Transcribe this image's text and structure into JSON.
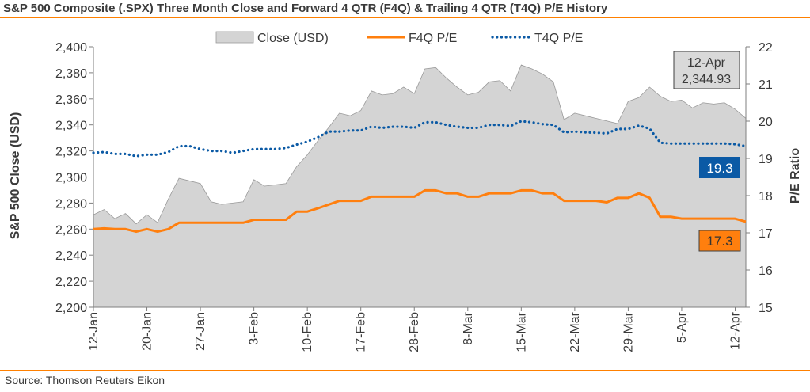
{
  "title": "S&P 500 Composite (.SPX) Three Month Close and Forward 4 QTR (F4Q) & Trailing 4 QTR (T4Q) P/E History",
  "source": "Source: Thomson Reuters Eikon",
  "colors": {
    "area_fill": "#d4d4d4",
    "area_stroke": "#9a9a9a",
    "f4q": "#ff7f0e",
    "t4q": "#0b5aa5",
    "title_rule": "#ff8000",
    "text": "#3a3a3a"
  },
  "chart_data": {
    "type": "area",
    "ylabel_left": "S&P 500 Close (USD)",
    "ylabel_right": "P/E Ratio",
    "ylim_left": [
      2200,
      2400
    ],
    "ylim_right": [
      15,
      22
    ],
    "yticks_left": [
      "2,200",
      "2,220",
      "2,240",
      "2,260",
      "2,280",
      "2,300",
      "2,320",
      "2,340",
      "2,360",
      "2,380",
      "2,400"
    ],
    "yticks_right": [
      "15",
      "16",
      "17",
      "18",
      "19",
      "20",
      "21",
      "22"
    ],
    "x_tick_labels": [
      "12-Jan",
      "20-Jan",
      "27-Jan",
      "3-Feb",
      "10-Feb",
      "17-Feb",
      "28-Feb",
      "8-Mar",
      "15-Mar",
      "22-Mar",
      "29-Mar",
      "5-Apr",
      "12-Apr"
    ],
    "x_tick_index": [
      0,
      5,
      10,
      15,
      20,
      25,
      30,
      35,
      40,
      45,
      50,
      55,
      60
    ],
    "legend": [
      "Close (USD)",
      "F4Q P/E",
      "T4Q P/E"
    ],
    "legend_position": "top",
    "series": [
      {
        "name": "Close (USD)",
        "kind": "area",
        "axis": "left",
        "values": [
          2271,
          2275,
          2268,
          2272,
          2264,
          2271,
          2265,
          2283,
          2299,
          2297,
          2295,
          2281,
          2279,
          2280,
          2281,
          2298,
          2293,
          2294,
          2295,
          2308,
          2317,
          2328,
          2338,
          2349,
          2347,
          2351,
          2366,
          2363,
          2364,
          2369,
          2364,
          2383,
          2384,
          2376,
          2369,
          2363,
          2365,
          2373,
          2374,
          2366,
          2386,
          2383,
          2379,
          2373,
          2344,
          2349,
          2347,
          2345,
          2343,
          2341,
          2358,
          2361,
          2369,
          2362,
          2358,
          2359,
          2353,
          2357,
          2356,
          2357,
          2352,
          2345
        ]
      },
      {
        "name": "F4Q P/E",
        "kind": "line",
        "axis": "right",
        "values": [
          17.1,
          17.12,
          17.1,
          17.1,
          17.03,
          17.1,
          17.03,
          17.1,
          17.27,
          17.27,
          17.27,
          17.27,
          17.27,
          17.27,
          17.27,
          17.35,
          17.35,
          17.35,
          17.35,
          17.57,
          17.57,
          17.66,
          17.76,
          17.86,
          17.86,
          17.86,
          17.97,
          17.97,
          17.97,
          17.97,
          17.97,
          18.14,
          18.14,
          18.06,
          18.06,
          17.97,
          17.97,
          18.06,
          18.06,
          18.06,
          18.14,
          18.14,
          18.06,
          18.06,
          17.86,
          17.86,
          17.86,
          17.86,
          17.82,
          17.94,
          17.94,
          18.06,
          17.94,
          17.43,
          17.43,
          17.38,
          17.38,
          17.38,
          17.38,
          17.38,
          17.38,
          17.3
        ]
      },
      {
        "name": "T4Q P/E",
        "kind": "dotted-line",
        "axis": "right",
        "values": [
          19.15,
          19.17,
          19.12,
          19.12,
          19.06,
          19.1,
          19.1,
          19.17,
          19.33,
          19.33,
          19.25,
          19.2,
          19.2,
          19.15,
          19.2,
          19.25,
          19.25,
          19.25,
          19.28,
          19.37,
          19.45,
          19.57,
          19.72,
          19.72,
          19.75,
          19.75,
          19.85,
          19.82,
          19.85,
          19.85,
          19.82,
          19.97,
          19.97,
          19.9,
          19.85,
          19.82,
          19.82,
          19.9,
          19.9,
          19.87,
          20.0,
          19.97,
          19.92,
          19.9,
          19.7,
          19.72,
          19.7,
          19.69,
          19.67,
          19.79,
          19.79,
          19.88,
          19.8,
          19.42,
          19.4,
          19.4,
          19.4,
          19.4,
          19.4,
          19.4,
          19.38,
          19.33
        ]
      }
    ],
    "annotations": [
      {
        "name": "close-last",
        "lines": [
          "12-Apr",
          "2,344.93"
        ]
      },
      {
        "name": "t4q-last",
        "text": "19.3",
        "color": "#0b5aa5"
      },
      {
        "name": "f4q-last",
        "text": "17.3",
        "color": "#ff7f0e"
      }
    ]
  }
}
